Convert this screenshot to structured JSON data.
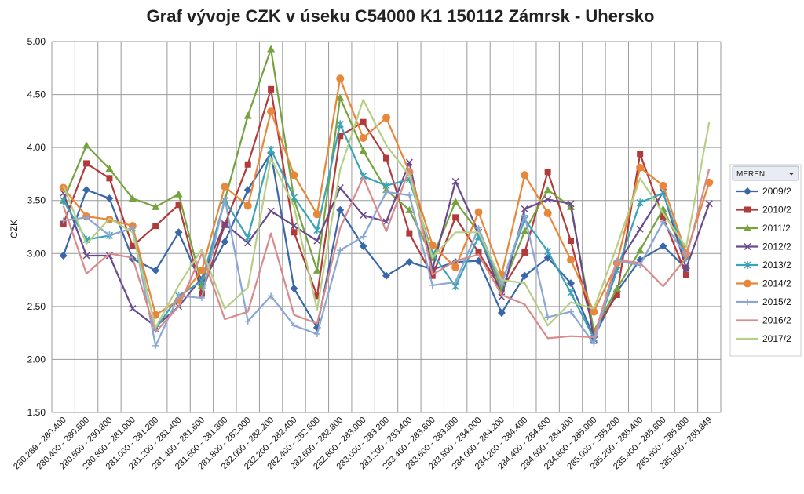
{
  "chart_data": {
    "type": "line",
    "title": "Graf vývoje CZK v úseku C54000 K1 150112 Zámrsk - Uhersko",
    "ylabel": "CZK",
    "xlabel": "",
    "ylim": [
      1.5,
      5.0
    ],
    "yticks": [
      "1.50",
      "2.00",
      "2.50",
      "3.00",
      "3.50",
      "4.00",
      "4.50",
      "5.00"
    ],
    "grid": true,
    "legend_position": "right",
    "legend_title": "MERENI",
    "categories": [
      "280.289 - 280.400",
      "280.400 - 280.600",
      "280.600 - 280.800",
      "280.800 - 281.000",
      "281.000 - 281.200",
      "281.200 - 281.400",
      "281.400 - 281.600",
      "281.600 - 281.800",
      "281.800 - 282.000",
      "282.000 - 282.200",
      "282.200 - 282.400",
      "282.400 - 282.600",
      "282.600 - 282.800",
      "282.800 - 283.000",
      "283.000 - 283.200",
      "283.200 - 283.400",
      "283.400 - 283.600",
      "283.600 - 283.800",
      "283.800 - 284.000",
      "284.000 - 284.200",
      "284.200 - 284.400",
      "284.400 - 284.600",
      "284.600 - 284.800",
      "284.800 - 285.000",
      "285.000 - 285.200",
      "285.200 - 285.400",
      "285.400 - 285.600",
      "285.600 - 285.800",
      "285.800 - 285.849"
    ],
    "series": [
      {
        "name": "2009/2",
        "color": "#3a67a8",
        "marker": "diamond",
        "values": [
          2.98,
          3.6,
          3.52,
          2.95,
          2.84,
          3.2,
          2.7,
          3.11,
          3.6,
          3.95,
          2.67,
          2.3,
          3.41,
          3.07,
          2.79,
          2.92,
          2.85,
          2.92,
          2.93,
          2.44,
          2.79,
          2.96,
          2.72,
          2.21,
          2.64,
          2.94,
          3.07,
          2.86,
          null
        ]
      },
      {
        "name": "2010/2",
        "color": "#b33a3a",
        "marker": "square",
        "values": [
          3.28,
          3.85,
          3.71,
          3.07,
          3.26,
          3.46,
          2.62,
          3.27,
          3.84,
          4.55,
          3.2,
          2.6,
          4.11,
          4.24,
          3.9,
          3.19,
          2.79,
          3.34,
          3.01,
          2.66,
          3.01,
          3.77,
          3.12,
          2.27,
          2.61,
          3.94,
          3.34,
          2.8,
          null
        ]
      },
      {
        "name": "2011/2",
        "color": "#76a340",
        "marker": "triangle",
        "values": [
          3.5,
          4.02,
          3.8,
          3.52,
          3.44,
          3.56,
          2.7,
          3.5,
          4.3,
          4.93,
          3.51,
          2.84,
          4.47,
          3.97,
          3.6,
          3.41,
          2.96,
          3.49,
          3.2,
          2.66,
          3.21,
          3.6,
          3.44,
          2.27,
          2.67,
          3.03,
          3.42,
          2.97,
          null
        ]
      },
      {
        "name": "2012/2",
        "color": "#6a4a8c",
        "marker": "x",
        "values": [
          3.57,
          2.98,
          2.98,
          2.48,
          2.31,
          2.5,
          2.77,
          3.28,
          3.1,
          3.4,
          3.26,
          3.12,
          3.62,
          3.36,
          3.3,
          3.86,
          2.85,
          3.68,
          3.2,
          2.59,
          3.42,
          3.51,
          3.47,
          2.19,
          2.89,
          3.23,
          3.58,
          2.86,
          3.47
        ]
      },
      {
        "name": "2013/2",
        "color": "#3aa3b8",
        "marker": "star",
        "values": [
          3.5,
          3.13,
          3.17,
          3.24,
          2.29,
          2.6,
          2.74,
          3.5,
          3.15,
          3.98,
          3.53,
          3.22,
          4.22,
          3.73,
          3.64,
          3.7,
          3.0,
          2.69,
          3.16,
          2.72,
          3.32,
          3.02,
          2.63,
          2.2,
          2.84,
          3.48,
          3.57,
          2.96,
          null
        ]
      },
      {
        "name": "2014/2",
        "color": "#e8873a",
        "marker": "circle",
        "values": [
          3.62,
          3.35,
          3.32,
          3.26,
          2.42,
          2.56,
          2.84,
          3.63,
          3.45,
          4.34,
          3.74,
          3.37,
          4.65,
          4.09,
          4.28,
          3.77,
          3.08,
          2.87,
          3.39,
          2.8,
          3.74,
          3.38,
          2.94,
          2.45,
          2.91,
          3.81,
          3.64,
          3.0,
          3.67
        ]
      },
      {
        "name": "2015/2",
        "color": "#8aa6d4",
        "marker": "plus",
        "values": [
          3.31,
          3.34,
          3.17,
          3.24,
          2.13,
          2.6,
          2.58,
          3.52,
          2.36,
          2.6,
          2.32,
          2.24,
          3.03,
          3.16,
          3.58,
          3.55,
          2.7,
          2.73,
          3.24,
          2.71,
          3.36,
          2.4,
          2.45,
          2.15,
          2.93,
          2.89,
          3.3,
          2.98,
          null
        ]
      },
      {
        "name": "2016/2",
        "color": "#d98b8b",
        "marker": "none",
        "values": [
          3.45,
          2.81,
          3.0,
          2.96,
          2.26,
          2.5,
          3.0,
          2.38,
          2.45,
          3.19,
          2.42,
          2.34,
          3.24,
          3.72,
          3.21,
          3.8,
          2.8,
          2.93,
          2.99,
          2.61,
          2.52,
          2.2,
          2.22,
          2.21,
          2.94,
          2.91,
          2.69,
          2.96,
          3.8
        ]
      },
      {
        "name": "2017/2",
        "color": "#b5cf86",
        "marker": "none",
        "values": [
          3.64,
          3.09,
          3.33,
          3.2,
          2.3,
          2.7,
          3.04,
          2.48,
          2.68,
          3.9,
          3.44,
          2.47,
          3.79,
          4.45,
          4.02,
          3.74,
          2.96,
          3.2,
          3.2,
          2.75,
          2.72,
          2.32,
          2.54,
          2.48,
          3.07,
          3.71,
          3.38,
          3.06,
          4.24
        ]
      }
    ]
  }
}
